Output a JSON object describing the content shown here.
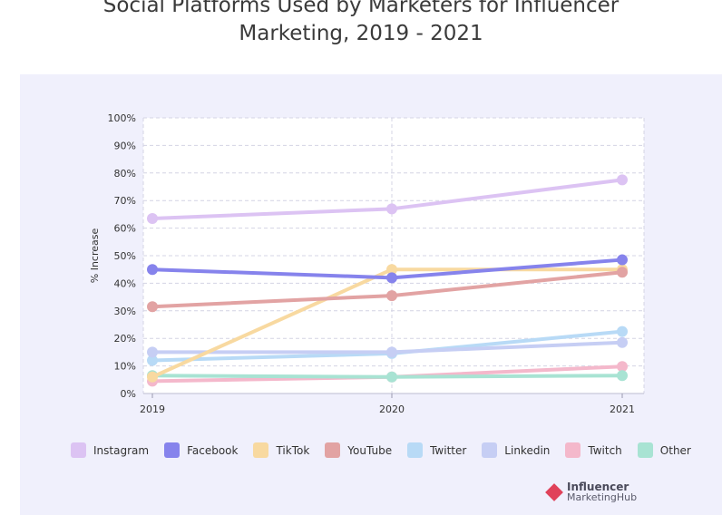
{
  "chart_data": {
    "type": "line",
    "title_line1": "Social Platforms Used by Marketers for Influencer",
    "title_line2": "Marketing, 2019 - 2021",
    "ylabel": "% Increase",
    "xlabel": "",
    "categories": [
      "2019",
      "2020",
      "2021"
    ],
    "ylim": [
      0,
      100
    ],
    "yticks": [
      "0%",
      "10%",
      "20%",
      "30%",
      "40%",
      "50%",
      "60%",
      "70%",
      "80%",
      "90%",
      "100%"
    ],
    "series": [
      {
        "name": "Twitch",
        "color": "#f4b8cb",
        "values": [
          4.5,
          6,
          9.8
        ]
      },
      {
        "name": "Other",
        "color": "#a8e3d3",
        "values": [
          6.5,
          6,
          6.5
        ]
      },
      {
        "name": "Twitter",
        "color": "#b8daf6",
        "values": [
          12,
          14.5,
          22.5
        ]
      },
      {
        "name": "Linkedin",
        "color": "#c6cef4",
        "values": [
          15,
          15,
          18.5
        ]
      },
      {
        "name": "TikTok",
        "color": "#f8d9a0",
        "values": [
          6,
          45,
          45
        ]
      },
      {
        "name": "YouTube",
        "color": "#e2a3a3",
        "values": [
          31.5,
          35.5,
          44
        ]
      },
      {
        "name": "Facebook",
        "color": "#8683ec",
        "values": [
          45,
          42,
          48.5
        ]
      },
      {
        "name": "Instagram",
        "color": "#dcc3f3",
        "values": [
          63.5,
          67,
          77.5
        ]
      }
    ]
  },
  "legend": [
    {
      "name": "Instagram",
      "color": "#dcc3f3"
    },
    {
      "name": "Facebook",
      "color": "#8683ec"
    },
    {
      "name": "TikTok",
      "color": "#f8d9a0"
    },
    {
      "name": "YouTube",
      "color": "#e2a3a3"
    },
    {
      "name": "Twitter",
      "color": "#b8daf6"
    },
    {
      "name": "Linkedin",
      "color": "#c6cef4"
    },
    {
      "name": "Twitch",
      "color": "#f4b8cb"
    },
    {
      "name": "Other",
      "color": "#a8e3d3"
    }
  ],
  "brand": {
    "line1": "Influencer",
    "line2": "MarketingHub",
    "color": "#e0425a"
  }
}
